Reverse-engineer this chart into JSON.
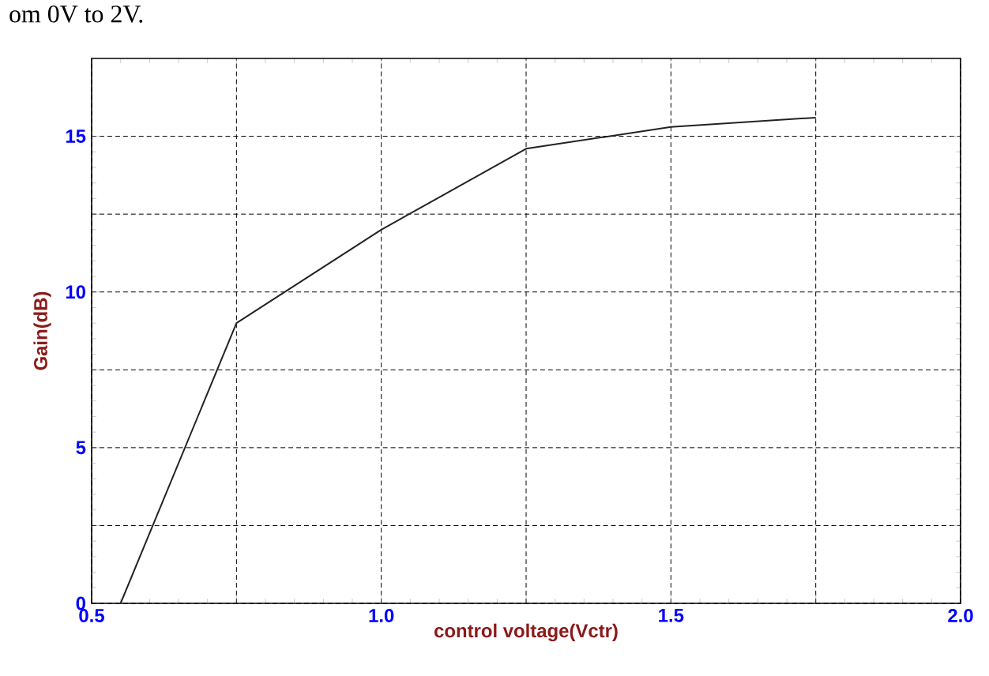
{
  "chart_data": {
    "type": "line",
    "xlabel": "control voltage(Vctr)",
    "ylabel": "Gain(dB)",
    "annotations": [
      "om 0V to 2V."
    ],
    "x": [
      0.55,
      0.75,
      1.0,
      1.25,
      1.5,
      1.75
    ],
    "series": [
      {
        "color": "#222222",
        "values": [
          0,
          9,
          12,
          14.6,
          15.3,
          15.6
        ]
      }
    ],
    "xlim": [
      0.5,
      2.0
    ],
    "ylim": [
      0,
      17.5
    ],
    "xticks": [
      0.5,
      {
        "value": 0.75,
        "label": null
      },
      {
        "value": 1.0,
        "label": "1.0"
      },
      {
        "value": 1.25,
        "label": null
      },
      1.5,
      {
        "value": 1.75,
        "label": null
      },
      {
        "value": 2.0,
        "label": "2.0"
      }
    ],
    "yticks": [
      0,
      {
        "value": 2.5,
        "label": null
      },
      5,
      {
        "value": 7.5,
        "label": null
      },
      10,
      {
        "value": 12.5,
        "label": null
      },
      15
    ],
    "grid": true,
    "marker": "none",
    "line_style": "solid"
  }
}
